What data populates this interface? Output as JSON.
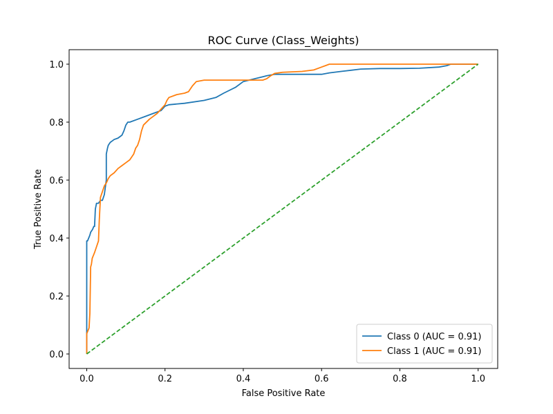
{
  "chart_data": {
    "type": "line",
    "title": "ROC Curve (Class_Weights)",
    "xlabel": "False Positive Rate",
    "ylabel": "True Positive Rate",
    "xlim": [
      -0.045,
      1.05
    ],
    "ylim": [
      -0.05,
      1.05
    ],
    "xticks": [
      "0.0",
      "0.2",
      "0.4",
      "0.6",
      "0.8",
      "1.0"
    ],
    "yticks": [
      "0.0",
      "0.2",
      "0.4",
      "0.6",
      "0.8",
      "1.0"
    ],
    "grid": false,
    "legend_position": "lower-right",
    "series": [
      {
        "name": "Class 0 (AUC = 0.91)",
        "color": "#1f77b4",
        "style": "solid",
        "x": [
          0.0,
          0.0,
          0.0,
          0.002,
          0.005,
          0.008,
          0.01,
          0.015,
          0.018,
          0.02,
          0.022,
          0.025,
          0.03,
          0.035,
          0.04,
          0.045,
          0.05,
          0.05,
          0.053,
          0.055,
          0.06,
          0.065,
          0.07,
          0.08,
          0.09,
          0.095,
          0.1,
          0.105,
          0.11,
          0.13,
          0.15,
          0.17,
          0.19,
          0.2,
          0.21,
          0.25,
          0.3,
          0.33,
          0.35,
          0.38,
          0.4,
          0.43,
          0.46,
          0.48,
          0.6,
          0.62,
          0.65,
          0.7,
          0.75,
          0.8,
          0.85,
          0.9,
          0.92,
          0.93,
          1.0
        ],
        "y": [
          0.0,
          0.32,
          0.39,
          0.39,
          0.4,
          0.41,
          0.42,
          0.43,
          0.44,
          0.44,
          0.5,
          0.52,
          0.52,
          0.53,
          0.53,
          0.55,
          0.6,
          0.69,
          0.71,
          0.72,
          0.73,
          0.735,
          0.74,
          0.745,
          0.755,
          0.77,
          0.79,
          0.8,
          0.8,
          0.81,
          0.82,
          0.83,
          0.84,
          0.855,
          0.86,
          0.865,
          0.875,
          0.885,
          0.9,
          0.92,
          0.94,
          0.95,
          0.96,
          0.965,
          0.965,
          0.97,
          0.975,
          0.983,
          0.985,
          0.985,
          0.986,
          0.99,
          0.995,
          1.0,
          1.0
        ]
      },
      {
        "name": "Class 1 (AUC = 0.91)",
        "color": "#ff7f0e",
        "style": "solid",
        "x": [
          0.0,
          0.0,
          0.003,
          0.006,
          0.008,
          0.01,
          0.012,
          0.014,
          0.017,
          0.02,
          0.025,
          0.03,
          0.032,
          0.035,
          0.04,
          0.045,
          0.05,
          0.055,
          0.06,
          0.07,
          0.08,
          0.09,
          0.1,
          0.11,
          0.12,
          0.125,
          0.13,
          0.135,
          0.14,
          0.145,
          0.16,
          0.18,
          0.19,
          0.2,
          0.205,
          0.21,
          0.23,
          0.25,
          0.26,
          0.27,
          0.28,
          0.3,
          0.35,
          0.4,
          0.45,
          0.46,
          0.47,
          0.48,
          0.5,
          0.55,
          0.58,
          0.6,
          0.61,
          0.62,
          0.7,
          0.8,
          0.9,
          1.0
        ],
        "y": [
          0.0,
          0.07,
          0.08,
          0.09,
          0.14,
          0.3,
          0.31,
          0.33,
          0.34,
          0.35,
          0.37,
          0.39,
          0.46,
          0.54,
          0.56,
          0.58,
          0.59,
          0.605,
          0.615,
          0.625,
          0.64,
          0.65,
          0.66,
          0.67,
          0.69,
          0.71,
          0.72,
          0.74,
          0.77,
          0.79,
          0.81,
          0.83,
          0.845,
          0.86,
          0.875,
          0.885,
          0.895,
          0.9,
          0.905,
          0.925,
          0.94,
          0.945,
          0.945,
          0.945,
          0.945,
          0.95,
          0.96,
          0.968,
          0.972,
          0.975,
          0.98,
          0.99,
          0.995,
          1.0,
          1.0,
          1.0,
          1.0,
          1.0
        ]
      },
      {
        "name": "",
        "color": "#2ca02c",
        "style": "dashed",
        "x": [
          0.0,
          1.0
        ],
        "y": [
          0.0,
          1.0
        ]
      }
    ]
  }
}
